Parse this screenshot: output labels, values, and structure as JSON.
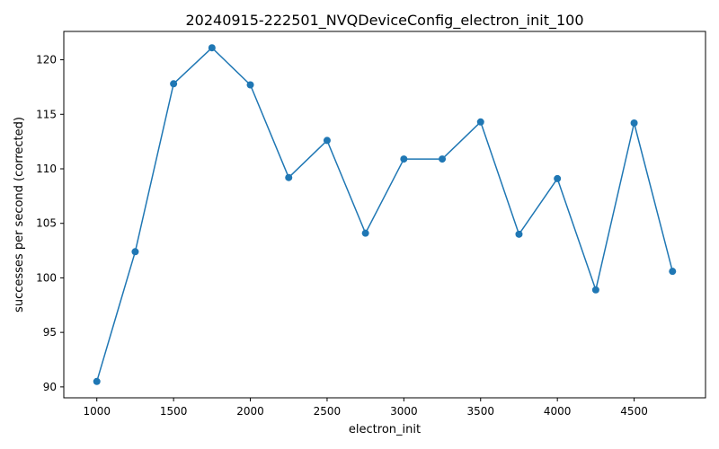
{
  "chart_data": {
    "type": "line",
    "title": "20240915-222501_NVQDeviceConfig_electron_init_100",
    "xlabel": "electron_init",
    "ylabel": "successes per second (corrected)",
    "xlim": [
      785,
      4965
    ],
    "ylim": [
      89.0,
      122.6
    ],
    "xticks": [
      1000,
      1500,
      2000,
      2500,
      3000,
      3500,
      4000,
      4500
    ],
    "yticks": [
      90,
      95,
      100,
      105,
      110,
      115,
      120
    ],
    "grid": false,
    "legend": "none",
    "series": [
      {
        "color": "#1f77b4",
        "marker": "circle",
        "x": [
          1000,
          1250,
          1500,
          1750,
          2000,
          2250,
          2500,
          2750,
          3000,
          3250,
          3500,
          3750,
          4000,
          4250,
          4500,
          4750
        ],
        "y": [
          90.5,
          102.4,
          117.8,
          121.1,
          117.7,
          109.2,
          112.6,
          104.1,
          110.9,
          110.9,
          114.3,
          104.0,
          109.1,
          98.9,
          114.2,
          100.6
        ]
      }
    ]
  }
}
